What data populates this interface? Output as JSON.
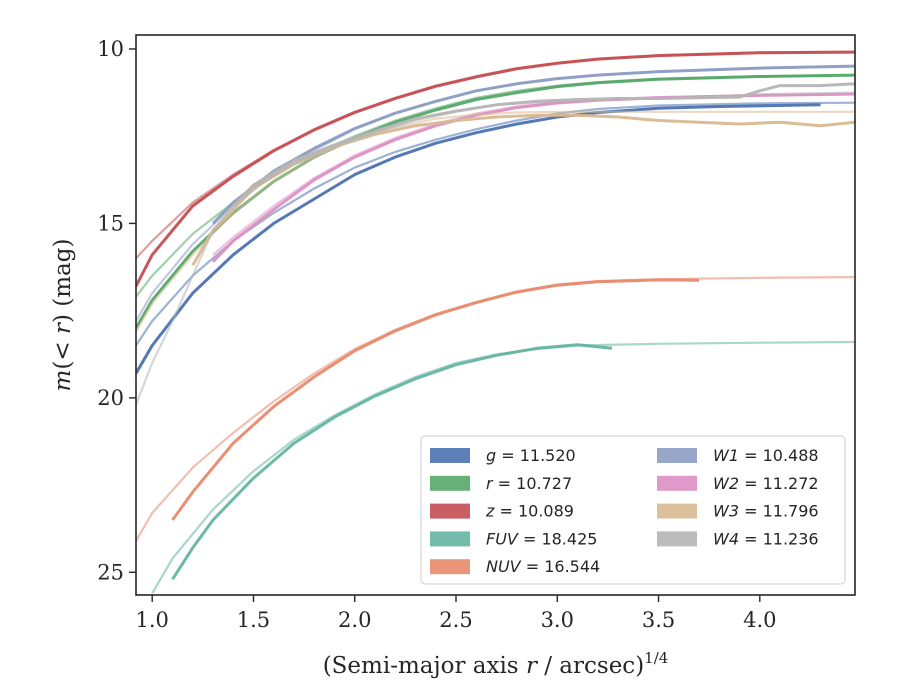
{
  "chart_data": {
    "type": "line",
    "title": "",
    "xlabel": "(Semi-major axis r / arcsec)",
    "xlabel_parts": {
      "pre": "(Semi-major axis ",
      "var": "r",
      "post": " / arcsec)",
      "sup": "1/4"
    },
    "ylabel": "m(< r) (mag)",
    "ylabel_parts": {
      "var": "m",
      "open": "(",
      "lt": "< ",
      "var2": "r",
      "close": ")",
      "unit": " (mag)"
    },
    "xlim": [
      0.92,
      4.47
    ],
    "ylim": [
      25.65,
      9.6
    ],
    "y_inverted": true,
    "xticks": [
      1.0,
      1.5,
      2.0,
      2.5,
      3.0,
      3.5,
      4.0
    ],
    "xtick_labels": [
      "1.0",
      "1.5",
      "2.0",
      "2.5",
      "3.0",
      "3.5",
      "4.0"
    ],
    "yticks": [
      10,
      15,
      20,
      25
    ],
    "ytick_labels": [
      "10",
      "15",
      "20",
      "25"
    ],
    "grid": false,
    "legend_placement": "lower-right",
    "legend_columns": 2,
    "series": [
      {
        "name": "g",
        "label_value": "= 11.520",
        "color": "#4c72b0",
        "model": {
          "x": [
            0.92,
            1.0,
            1.2,
            1.4,
            1.6,
            1.8,
            2.0,
            2.2,
            2.4,
            2.6,
            2.8,
            3.0,
            3.2,
            3.5,
            4.0,
            4.47
          ],
          "y": [
            18.5,
            17.8,
            16.5,
            15.5,
            14.7,
            14.0,
            13.4,
            12.95,
            12.6,
            12.3,
            12.05,
            11.85,
            11.72,
            11.62,
            11.56,
            11.54
          ]
        },
        "data": {
          "x": [
            0.92,
            1.0,
            1.2,
            1.4,
            1.6,
            1.8,
            2.0,
            2.2,
            2.4,
            2.6,
            2.8,
            3.0,
            3.2,
            3.5,
            3.8,
            4.3
          ],
          "y": [
            19.3,
            18.5,
            17.0,
            15.9,
            15.0,
            14.3,
            13.6,
            13.1,
            12.7,
            12.4,
            12.15,
            11.95,
            11.82,
            11.7,
            11.65,
            11.6
          ]
        }
      },
      {
        "name": "r",
        "label_value": "= 10.727",
        "color": "#55a868",
        "model": {
          "x": [
            0.92,
            1.0,
            1.2,
            1.4,
            1.6,
            1.8,
            2.0,
            2.2,
            2.4,
            2.6,
            2.8,
            3.0,
            3.2,
            3.5,
            4.0,
            4.47
          ],
          "y": [
            17.1,
            16.5,
            15.3,
            14.4,
            13.6,
            13.0,
            12.5,
            12.05,
            11.7,
            11.4,
            11.2,
            11.05,
            10.95,
            10.85,
            10.78,
            10.75
          ]
        },
        "data": {
          "x": [
            0.92,
            1.0,
            1.2,
            1.4,
            1.6,
            1.8,
            2.0,
            2.2,
            2.4,
            2.6,
            2.8,
            3.0,
            3.2,
            3.5,
            4.0,
            4.47
          ],
          "y": [
            18.0,
            17.2,
            15.8,
            14.7,
            13.8,
            13.1,
            12.55,
            12.1,
            11.75,
            11.45,
            11.25,
            11.08,
            10.97,
            10.87,
            10.79,
            10.75
          ]
        }
      },
      {
        "name": "z",
        "label_value": "= 10.089",
        "color": "#c44e52",
        "model": {
          "x": [
            0.92,
            1.0,
            1.2,
            1.4,
            1.6,
            1.8,
            2.0,
            2.2,
            2.4,
            2.6,
            2.8,
            3.0,
            3.2,
            3.5,
            4.0,
            4.47
          ],
          "y": [
            16.0,
            15.5,
            14.4,
            13.6,
            12.9,
            12.3,
            11.8,
            11.4,
            11.05,
            10.78,
            10.55,
            10.4,
            10.28,
            10.18,
            10.1,
            10.08
          ]
        },
        "data": {
          "x": [
            0.92,
            1.0,
            1.2,
            1.4,
            1.6,
            1.8,
            2.0,
            2.2,
            2.4,
            2.6,
            2.8,
            3.0,
            3.2,
            3.5,
            4.0,
            4.47
          ],
          "y": [
            16.8,
            15.9,
            14.5,
            13.65,
            12.92,
            12.32,
            11.82,
            11.42,
            11.07,
            10.8,
            10.57,
            10.41,
            10.29,
            10.19,
            10.11,
            10.09
          ]
        }
      },
      {
        "name": "FUV",
        "label_value": "= 18.425",
        "color": "#64b5a0",
        "model": {
          "x": [
            1.0,
            1.1,
            1.3,
            1.5,
            1.7,
            1.9,
            2.1,
            2.3,
            2.5,
            2.7,
            2.9,
            3.1,
            3.5,
            4.0,
            4.47
          ],
          "y": [
            25.6,
            24.6,
            23.2,
            22.1,
            21.2,
            20.5,
            19.9,
            19.4,
            19.0,
            18.75,
            18.6,
            18.5,
            18.45,
            18.42,
            18.4
          ]
        },
        "data": {
          "x": [
            1.1,
            1.2,
            1.3,
            1.5,
            1.7,
            1.9,
            2.1,
            2.3,
            2.5,
            2.7,
            2.9,
            3.1,
            3.27
          ],
          "y": [
            25.2,
            24.3,
            23.5,
            22.3,
            21.3,
            20.55,
            19.95,
            19.45,
            19.05,
            18.78,
            18.58,
            18.48,
            18.58
          ]
        }
      },
      {
        "name": "NUV",
        "label_value": "= 16.544",
        "color": "#e8896b",
        "model": {
          "x": [
            0.92,
            1.0,
            1.2,
            1.4,
            1.6,
            1.8,
            2.0,
            2.2,
            2.4,
            2.6,
            2.8,
            3.0,
            3.2,
            3.5,
            4.0,
            4.47
          ],
          "y": [
            24.1,
            23.3,
            22.0,
            21.0,
            20.1,
            19.3,
            18.6,
            18.05,
            17.6,
            17.25,
            16.95,
            16.75,
            16.65,
            16.6,
            16.56,
            16.54
          ]
        },
        "data": {
          "x": [
            1.1,
            1.2,
            1.4,
            1.6,
            1.8,
            2.0,
            2.2,
            2.4,
            2.6,
            2.8,
            3.0,
            3.2,
            3.5,
            3.7
          ],
          "y": [
            23.5,
            22.7,
            21.3,
            20.25,
            19.4,
            18.65,
            18.08,
            17.62,
            17.27,
            16.97,
            16.77,
            16.67,
            16.62,
            16.63
          ]
        }
      },
      {
        "name": "W1",
        "label_value": "= 10.488",
        "color": "#8c9dc4",
        "model": {
          "x": [
            0.92,
            1.0,
            1.2,
            1.4,
            1.6,
            1.8,
            2.0,
            2.2,
            2.4,
            2.6,
            2.8,
            3.0,
            3.2,
            3.5,
            4.0,
            4.47
          ],
          "y": [
            17.8,
            17.0,
            15.6,
            14.5,
            13.6,
            12.9,
            12.3,
            11.85,
            11.5,
            11.2,
            11.0,
            10.85,
            10.75,
            10.65,
            10.55,
            10.5
          ]
        },
        "data": {
          "x": [
            1.3,
            1.4,
            1.6,
            1.8,
            2.0,
            2.2,
            2.4,
            2.6,
            2.8,
            3.0,
            3.2,
            3.5,
            4.0,
            4.47
          ],
          "y": [
            15.0,
            14.4,
            13.5,
            12.85,
            12.28,
            11.84,
            11.5,
            11.2,
            11.0,
            10.85,
            10.75,
            10.65,
            10.55,
            10.49
          ]
        }
      },
      {
        "name": "W2",
        "label_value": "= 11.272",
        "color": "#dd8fc3",
        "model": {
          "x": [
            1.3,
            1.4,
            1.6,
            1.8,
            2.0,
            2.2,
            2.4,
            2.6,
            2.8,
            3.0,
            3.2,
            3.5,
            4.0,
            4.47
          ],
          "y": [
            15.9,
            15.4,
            14.5,
            13.7,
            13.05,
            12.55,
            12.15,
            11.85,
            11.65,
            11.52,
            11.45,
            11.38,
            11.32,
            11.3
          ]
        },
        "data": {
          "x": [
            1.3,
            1.4,
            1.6,
            1.8,
            2.0,
            2.2,
            2.4,
            2.6,
            2.8,
            3.0,
            3.2,
            3.5,
            4.0,
            4.47
          ],
          "y": [
            16.1,
            15.5,
            14.6,
            13.75,
            13.1,
            12.6,
            12.2,
            11.9,
            11.68,
            11.55,
            11.47,
            11.4,
            11.33,
            11.29
          ]
        }
      },
      {
        "name": "W3",
        "label_value": "= 11.796",
        "color": "#d8b991",
        "model": {
          "x": [
            0.92,
            1.0,
            1.2,
            1.4,
            1.6,
            1.8,
            2.0,
            2.2,
            2.4,
            2.6,
            2.8,
            3.0,
            3.2,
            3.5,
            4.0,
            4.47
          ],
          "y": [
            18.1,
            17.3,
            15.9,
            14.7,
            13.8,
            13.1,
            12.6,
            12.25,
            12.0,
            11.88,
            11.82,
            11.8,
            11.8,
            11.8,
            11.8,
            11.8
          ]
        },
        "data": {
          "x": [
            1.2,
            1.3,
            1.5,
            1.7,
            1.9,
            2.1,
            2.3,
            2.5,
            2.7,
            2.9,
            3.1,
            3.3,
            3.5,
            3.7,
            3.9,
            4.1,
            4.3,
            4.47
          ],
          "y": [
            16.2,
            15.2,
            14.0,
            13.3,
            12.8,
            12.45,
            12.2,
            12.05,
            11.95,
            11.9,
            11.9,
            11.95,
            12.05,
            12.1,
            12.15,
            12.1,
            12.2,
            12.1
          ]
        }
      },
      {
        "name": "W4",
        "label_value": "= 11.236",
        "color": "#b5b5b5",
        "model": {
          "x": [
            0.92,
            1.0,
            1.1,
            1.2,
            1.3,
            1.4,
            1.5,
            1.7,
            1.9,
            2.1,
            2.3,
            2.5,
            2.7,
            3.0,
            3.3,
            3.6,
            4.0,
            4.47
          ],
          "y": [
            20.2,
            19.0,
            17.8,
            16.5,
            15.2,
            14.5,
            14.0,
            13.3,
            12.8,
            12.4,
            12.05,
            11.8,
            11.6,
            11.5,
            11.45,
            11.4,
            11.3,
            11.25
          ]
        },
        "data": {
          "x": [
            1.4,
            1.5,
            1.7,
            1.9,
            2.1,
            2.3,
            2.5,
            2.7,
            2.9,
            3.1,
            3.3,
            3.5,
            3.7,
            3.9,
            4.0,
            4.1,
            4.3,
            4.47
          ],
          "y": [
            14.5,
            13.9,
            13.2,
            12.75,
            12.35,
            12.0,
            11.78,
            11.6,
            11.5,
            11.45,
            11.42,
            11.42,
            11.4,
            11.38,
            11.2,
            11.05,
            11.05,
            11.0
          ]
        }
      }
    ]
  }
}
